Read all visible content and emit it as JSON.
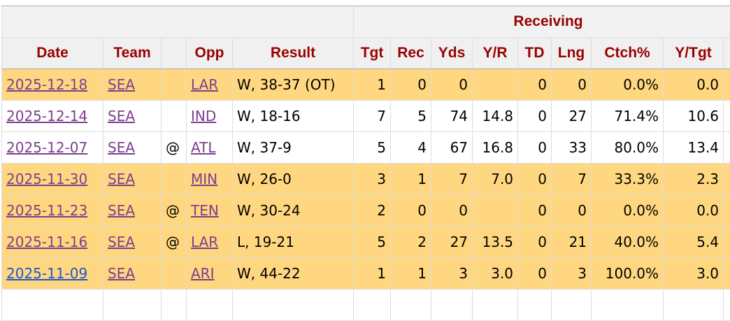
{
  "table": {
    "group_header": "Receiving",
    "columns": {
      "date": "Date",
      "team": "Team",
      "opp": "Opp",
      "result": "Result",
      "tgt": "Tgt",
      "rec": "Rec",
      "yds": "Yds",
      "yr": "Y/R",
      "td": "TD",
      "lng": "Lng",
      "ctch": "Ctch%",
      "ytgt": "Y/Tgt"
    },
    "rows": [
      {
        "highlight": true,
        "visited": true,
        "date": "2025-12-18",
        "team": "SEA",
        "opp": "LAR",
        "result": "W, 38-37 (OT)",
        "tgt": "1",
        "rec": "0",
        "yds": "0",
        "td": "0",
        "lng": "0",
        "ctch": "0.0%",
        "ytgt": "0.0"
      },
      {
        "highlight": false,
        "visited": true,
        "date": "2025-12-14",
        "team": "SEA",
        "opp": "IND",
        "result": "W, 18-16",
        "tgt": "7",
        "rec": "5",
        "yds": "74",
        "yr": "14.8",
        "td": "0",
        "lng": "27",
        "ctch": "71.4%",
        "ytgt": "10.6"
      },
      {
        "highlight": false,
        "visited": true,
        "date": "2025-12-07",
        "team": "SEA",
        "at": "@",
        "opp": "ATL",
        "result": "W, 37-9",
        "tgt": "5",
        "rec": "4",
        "yds": "67",
        "yr": "16.8",
        "td": "0",
        "lng": "33",
        "ctch": "80.0%",
        "ytgt": "13.4"
      },
      {
        "highlight": true,
        "visited": true,
        "date": "2025-11-30",
        "team": "SEA",
        "opp": "MIN",
        "result": "W, 26-0",
        "tgt": "3",
        "rec": "1",
        "yds": "7",
        "yr": "7.0",
        "td": "0",
        "lng": "7",
        "ctch": "33.3%",
        "ytgt": "2.3"
      },
      {
        "highlight": true,
        "visited": true,
        "date": "2025-11-23",
        "team": "SEA",
        "at": "@",
        "opp": "TEN",
        "result": "W, 30-24",
        "tgt": "2",
        "rec": "0",
        "yds": "0",
        "td": "0",
        "lng": "0",
        "ctch": "0.0%",
        "ytgt": "0.0"
      },
      {
        "highlight": true,
        "visited": true,
        "date": "2025-11-16",
        "team": "SEA",
        "at": "@",
        "opp": "LAR",
        "result": "L, 19-21",
        "tgt": "5",
        "rec": "2",
        "yds": "27",
        "yr": "13.5",
        "td": "0",
        "lng": "21",
        "ctch": "40.0%",
        "ytgt": "5.4"
      },
      {
        "highlight": true,
        "visited": false,
        "date": "2025-11-09",
        "team": "SEA",
        "opp": "ARI",
        "result": "W, 44-22",
        "tgt": "1",
        "rec": "1",
        "yds": "3",
        "yr": "3.0",
        "td": "0",
        "lng": "3",
        "ctch": "100.0%",
        "ytgt": "3.0"
      }
    ]
  }
}
